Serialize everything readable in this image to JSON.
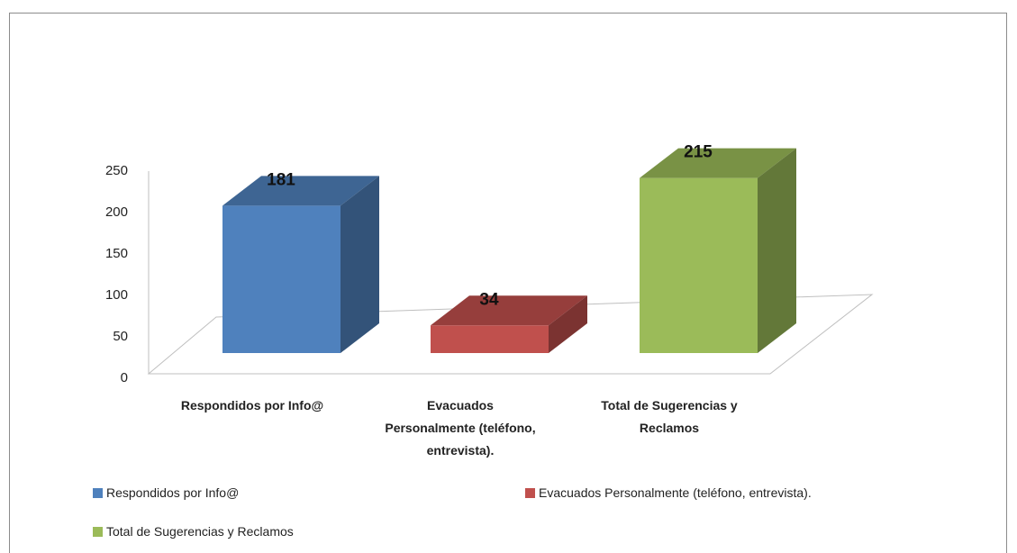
{
  "chart_data": {
    "type": "bar3d",
    "categories": [
      "Respondidos por Info@",
      "Evacuados Personalmente (teléfono, entrevista).",
      "Total de Sugerencias y Reclamos"
    ],
    "values": [
      181,
      34,
      215
    ],
    "colors": [
      "#4f81bd",
      "#c0504d",
      "#9bbb59"
    ],
    "ylim": [
      0,
      250
    ],
    "yticks": [
      0,
      50,
      100,
      150,
      200,
      250
    ],
    "legend": "bottom"
  }
}
